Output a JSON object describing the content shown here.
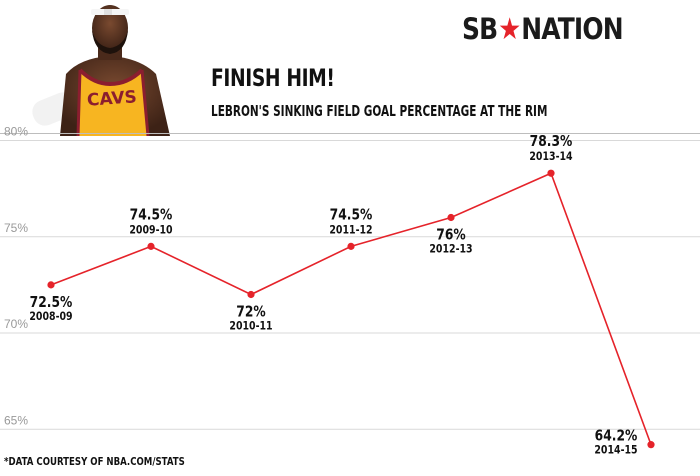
{
  "header": {
    "title": "FINISH HIM!",
    "subtitle": "LEBRON'S SINKING FIELD GOAL PERCENTAGE AT THE RIM",
    "logo_left": "SB",
    "logo_right": "NATION",
    "logo_star": "★"
  },
  "player_photo": {
    "jersey_text": "CAVS",
    "jersey_color": "#f7b521",
    "trim_color": "#8b1e2f"
  },
  "footer": {
    "source": "*DATA COURTESY OF NBA.COM/STATS"
  },
  "colors": {
    "line": "#e5232a",
    "grid": "#d9d9d9",
    "tick_text": "#999999",
    "label_text": "#111111"
  },
  "chart_data": {
    "type": "line",
    "title": "FINISH HIM!",
    "subtitle": "LEBRON'S SINKING FIELD GOAL PERCENTAGE AT THE RIM",
    "xlabel": "",
    "ylabel": "",
    "categories": [
      "2008-09",
      "2009-10",
      "2010-11",
      "2011-12",
      "2012-13",
      "2013-14",
      "2014-15"
    ],
    "series": [
      {
        "values": [
          72.5,
          74.5,
          72,
          74.5,
          76,
          78.3,
          64.2
        ],
        "labels": [
          "72.5%",
          "74.5%",
          "72%",
          "74.5%",
          "76%",
          "78.3%",
          "64.2%"
        ],
        "label_positions": [
          "below",
          "above",
          "below",
          "above",
          "below",
          "above",
          "left"
        ]
      }
    ],
    "ylim": [
      64,
      80
    ],
    "yticks": [
      65,
      70,
      75,
      80
    ],
    "ytick_labels": [
      "65%",
      "70%",
      "75%",
      "80%"
    ],
    "grid": true,
    "legend": "none"
  }
}
